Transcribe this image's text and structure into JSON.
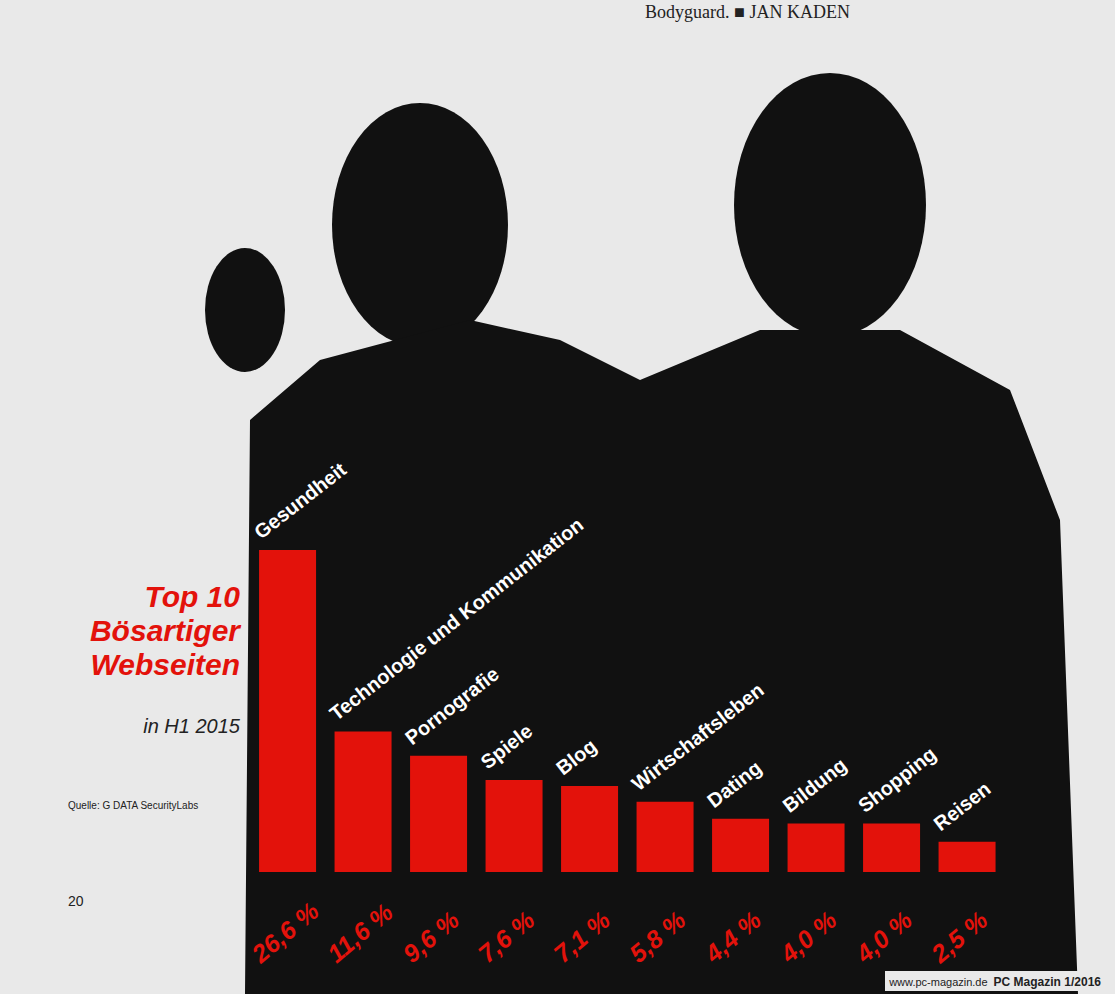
{
  "chart_data": {
    "type": "bar",
    "title": "Top 10 Bösartiger Webseiten",
    "subtitle": "in H1 2015",
    "annotations": [
      "Quelle: G DATA SecurityLabs",
      "Bodyguard. ■ JAN KADEN",
      "20",
      "www.pc-magazin.de",
      "PC Magazin 1/2016"
    ],
    "categories": [
      "Gesundheit",
      "Technologie und Kommunikation",
      "Pornografie",
      "Spiele",
      "Blog",
      "Wirtschaftsleben",
      "Dating",
      "Bildung",
      "Shopping",
      "Reisen"
    ],
    "values": [
      26.6,
      11.6,
      9.6,
      7.6,
      7.1,
      5.8,
      4.4,
      4.0,
      4.0,
      2.5
    ],
    "value_labels": [
      "26,6 %",
      "11,6 %",
      "9,6 %",
      "7,6 %",
      "7,1 %",
      "5,8 %",
      "4,4 %",
      "4,0 %",
      "4,0 %",
      "2,5 %"
    ],
    "color": "#e3120b",
    "ylim": [
      0,
      26.6
    ],
    "grid": false,
    "data_labels": true,
    "tick_labels": false
  }
}
